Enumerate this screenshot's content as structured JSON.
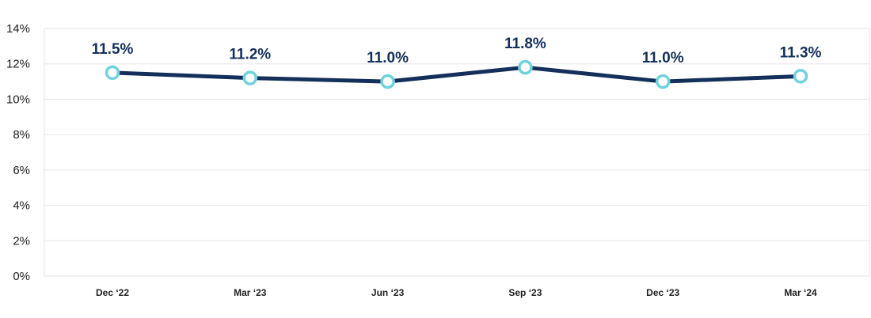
{
  "chart_data": {
    "type": "line",
    "title": "",
    "xlabel": "",
    "ylabel": "",
    "categories": [
      "Dec ‘22",
      "Mar ‘23",
      "Jun ‘23",
      "Sep ‘23",
      "Dec ‘23",
      "Mar ‘24"
    ],
    "values": [
      11.5,
      11.2,
      11.0,
      11.8,
      11.0,
      11.3
    ],
    "data_labels": [
      "11.5%",
      "11.2%",
      "11.0%",
      "11.8%",
      "11.0%",
      "11.3%"
    ],
    "ylim": [
      0,
      14
    ],
    "yticks": [
      0,
      2,
      4,
      6,
      8,
      10,
      12,
      14
    ],
    "ytick_labels": [
      "0%",
      "2%",
      "4%",
      "6%",
      "8%",
      "10%",
      "12%",
      "14%"
    ],
    "grid": true,
    "legend": "none",
    "colors": {
      "line": "#14305a",
      "marker_stroke": "#6fd2dc",
      "marker_fill": "#ffffff",
      "label": "#14305a",
      "grid": "#e6e6e6",
      "axis_text": "#1f1f1f"
    }
  }
}
